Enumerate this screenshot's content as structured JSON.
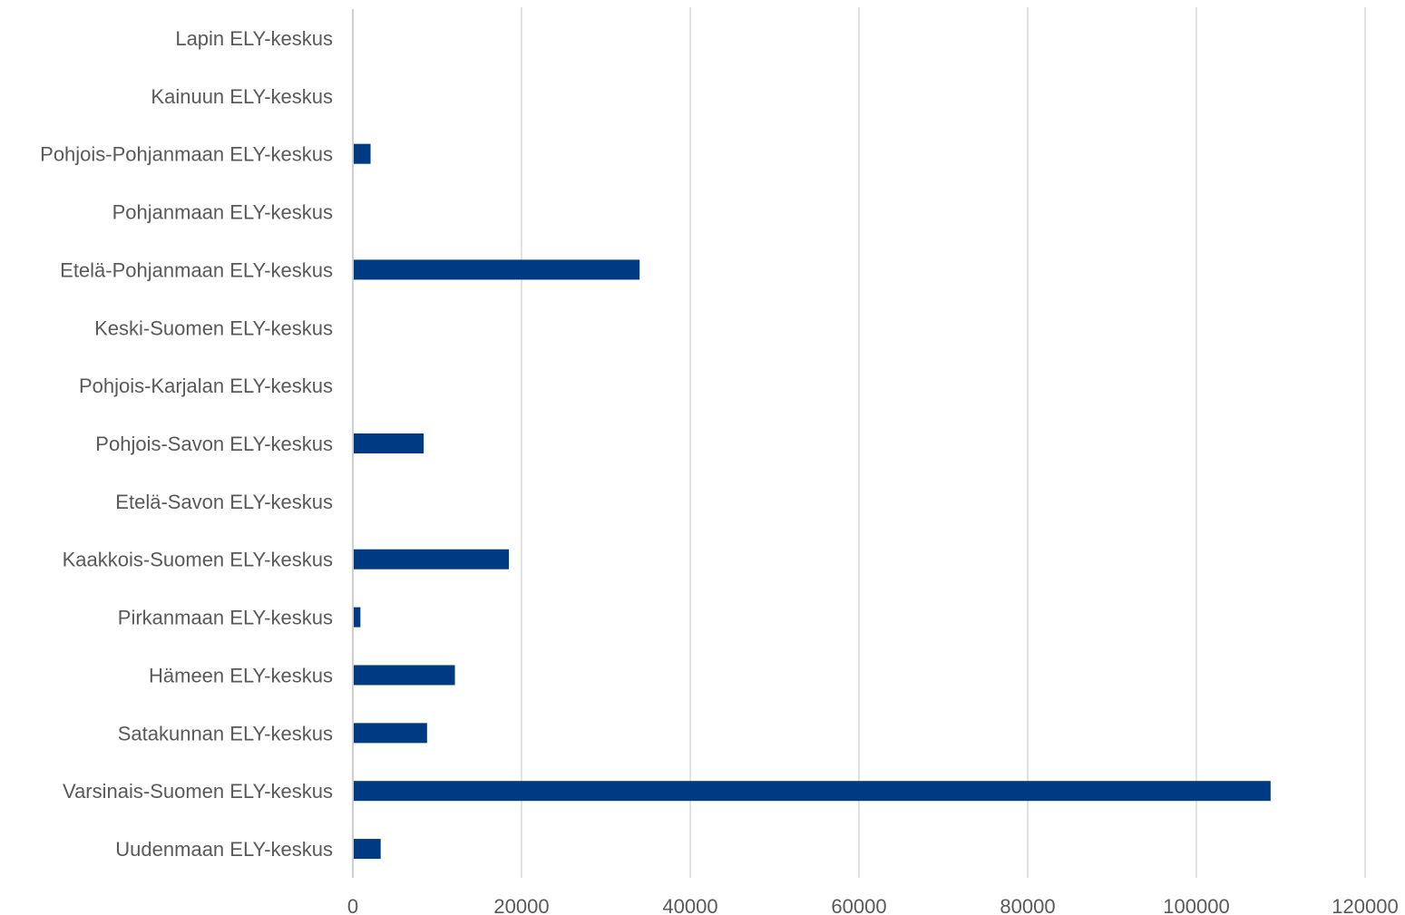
{
  "chart_data": {
    "type": "bar",
    "orientation": "horizontal",
    "title": "",
    "xlabel": "",
    "ylabel": "",
    "categories": [
      "Lapin ELY-keskus",
      "Kainuun ELY-keskus",
      "Pohjois-Pohjanmaan ELY-keskus",
      "Pohjanmaan ELY-keskus",
      "Etelä-Pohjanmaan ELY-keskus",
      "Keski-Suomen ELY-keskus",
      "Pohjois-Karjalan ELY-keskus",
      "Pohjois-Savon ELY-keskus",
      "Etelä-Savon ELY-keskus",
      "Kaakkois-Suomen ELY-keskus",
      "Pirkanmaan ELY-keskus",
      "Hämeen ELY-keskus",
      "Satakunnan ELY-keskus",
      "Varsinais-Suomen ELY-keskus",
      "Uudenmaan ELY-keskus"
    ],
    "values": [
      0,
      0,
      2100,
      0,
      34000,
      0,
      0,
      8400,
      0,
      18500,
      900,
      12100,
      8800,
      108800,
      3300
    ],
    "xlim": [
      0,
      120000
    ],
    "xticks": [
      0,
      20000,
      40000,
      60000,
      80000,
      100000,
      120000
    ],
    "xtick_labels": [
      "0",
      "20000",
      "40000",
      "60000",
      "80000",
      "100000",
      "120000"
    ],
    "grid": true,
    "legend": "none",
    "bar_color": "#003A82"
  }
}
